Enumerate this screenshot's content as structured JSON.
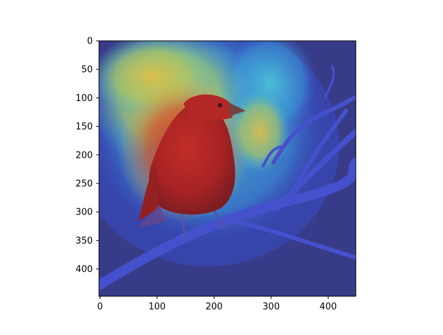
{
  "figure": {
    "image_description_icon": "bird-on-branch-heatmap-overlay",
    "colors": {
      "background": "#3b3e8a",
      "heat_hot": "#e0231c",
      "heat_warm": "#f4e04a",
      "heat_mid": "#43d4e0",
      "heat_cool": "#3b4fd6",
      "bird": "#cf2a1e",
      "branch": "#4a57d8"
    }
  },
  "axes": {
    "x_ticks": [
      "0",
      "100",
      "200",
      "300",
      "400"
    ],
    "y_ticks": [
      "0",
      "50",
      "100",
      "150",
      "200",
      "250",
      "300",
      "350",
      "400"
    ]
  }
}
